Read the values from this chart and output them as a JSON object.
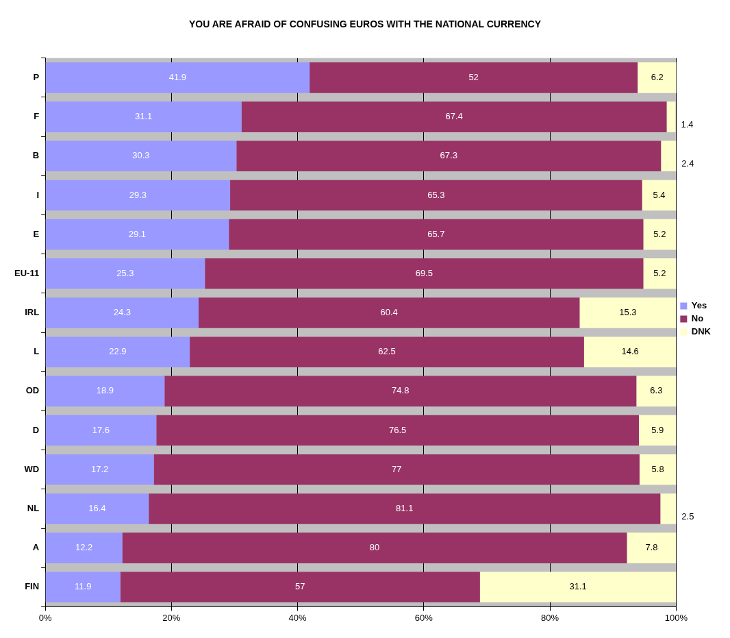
{
  "chart_data": {
    "type": "bar",
    "orientation": "horizontal",
    "stacked": true,
    "title": "YOU ARE AFRAID OF CONFUSING EUROS WITH THE NATIONAL CURRENCY",
    "categories": [
      "P",
      "F",
      "B",
      "I",
      "E",
      "EU-11",
      "IRL",
      "L",
      "OD",
      "D",
      "WD",
      "NL",
      "A",
      "FIN"
    ],
    "series": [
      {
        "name": "Yes",
        "color": "#9999ff",
        "values": [
          41.9,
          31.1,
          30.3,
          29.3,
          29.1,
          25.3,
          24.3,
          22.9,
          18.9,
          17.6,
          17.2,
          16.4,
          12.2,
          11.9
        ]
      },
      {
        "name": "No",
        "color": "#993366",
        "values": [
          52,
          67.4,
          67.3,
          65.3,
          65.7,
          69.5,
          60.4,
          62.5,
          74.8,
          76.5,
          77,
          81.1,
          80,
          57
        ]
      },
      {
        "name": "DNK",
        "color": "#ffffcc",
        "values": [
          6.2,
          1.4,
          2.4,
          5.4,
          5.2,
          5.2,
          15.3,
          14.6,
          6.3,
          5.9,
          5.8,
          2.5,
          7.8,
          31.1
        ]
      }
    ],
    "xlim": [
      0,
      100
    ],
    "xticks": [
      {
        "value": 0,
        "label": "0%"
      },
      {
        "value": 20,
        "label": "20%"
      },
      {
        "value": 40,
        "label": "40%"
      },
      {
        "value": 60,
        "label": "60%"
      },
      {
        "value": 80,
        "label": "80%"
      },
      {
        "value": 100,
        "label": "100%"
      }
    ],
    "data_labels": true,
    "grid": "x",
    "legend": "right"
  }
}
